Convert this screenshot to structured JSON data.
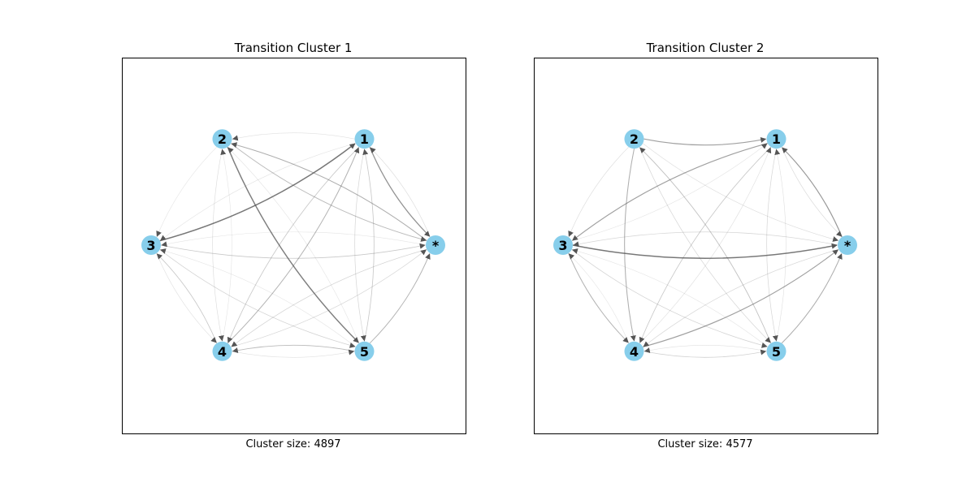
{
  "colors": {
    "node_fill": "#87ceeb",
    "edge": "#555555",
    "frame": "#000000",
    "text": "#000000"
  },
  "panels": [
    {
      "title": "Transition Cluster 1",
      "caption": "Cluster size: 4897",
      "nodes": [
        "1",
        "2",
        "3",
        "4",
        "5",
        "*"
      ],
      "edges": [
        {
          "from": "3",
          "to": "1",
          "weight": 0.9
        },
        {
          "from": "2",
          "to": "5",
          "weight": 0.85
        },
        {
          "from": "1",
          "to": "*",
          "weight": 0.7
        },
        {
          "from": "*",
          "to": "2",
          "weight": 0.5
        },
        {
          "from": "2",
          "to": "*",
          "weight": 0.4
        },
        {
          "from": "4",
          "to": "1",
          "weight": 0.45
        },
        {
          "from": "5",
          "to": "*",
          "weight": 0.45
        },
        {
          "from": "5",
          "to": "4",
          "weight": 0.4
        },
        {
          "from": "3",
          "to": "*",
          "weight": 0.3
        },
        {
          "from": "4",
          "to": "3",
          "weight": 0.3
        },
        {
          "from": "1",
          "to": "4",
          "weight": 0.3
        },
        {
          "from": "5",
          "to": "1",
          "weight": 0.3
        },
        {
          "from": "3",
          "to": "5",
          "weight": 0.22
        },
        {
          "from": "*",
          "to": "4",
          "weight": 0.22
        },
        {
          "from": "4",
          "to": "*",
          "weight": 0.2
        },
        {
          "from": "1",
          "to": "5",
          "weight": 0.2
        },
        {
          "from": "*",
          "to": "1",
          "weight": 0.15
        },
        {
          "from": "2",
          "to": "4",
          "weight": 0.15
        },
        {
          "from": "1",
          "to": "2",
          "weight": 0.12
        },
        {
          "from": "4",
          "to": "5",
          "weight": 0.12
        },
        {
          "from": "3",
          "to": "4",
          "weight": 0.12
        },
        {
          "from": "4",
          "to": "2",
          "weight": 0.1
        },
        {
          "from": "2",
          "to": "3",
          "weight": 0.1
        },
        {
          "from": "1",
          "to": "3",
          "weight": 0.1
        },
        {
          "from": "5",
          "to": "3",
          "weight": 0.1
        },
        {
          "from": "*",
          "to": "3",
          "weight": 0.1
        },
        {
          "from": "5",
          "to": "2",
          "weight": 0.1
        }
      ]
    },
    {
      "title": "Transition Cluster 2",
      "caption": "Cluster size: 4577",
      "nodes": [
        "1",
        "2",
        "3",
        "4",
        "5",
        "*"
      ],
      "edges": [
        {
          "from": "3",
          "to": "*",
          "weight": 0.9
        },
        {
          "from": "*",
          "to": "1",
          "weight": 0.65
        },
        {
          "from": "4",
          "to": "*",
          "weight": 0.6
        },
        {
          "from": "1",
          "to": "3",
          "weight": 0.6
        },
        {
          "from": "2",
          "to": "1",
          "weight": 0.6
        },
        {
          "from": "2",
          "to": "4",
          "weight": 0.5
        },
        {
          "from": "5",
          "to": "*",
          "weight": 0.5
        },
        {
          "from": "3",
          "to": "4",
          "weight": 0.45
        },
        {
          "from": "5",
          "to": "2",
          "weight": 0.35
        },
        {
          "from": "1",
          "to": "4",
          "weight": 0.3
        },
        {
          "from": "4",
          "to": "5",
          "weight": 0.25
        },
        {
          "from": "3",
          "to": "5",
          "weight": 0.22
        },
        {
          "from": "2",
          "to": "5",
          "weight": 0.2
        },
        {
          "from": "*",
          "to": "3",
          "weight": 0.2
        },
        {
          "from": "1",
          "to": "5",
          "weight": 0.2
        },
        {
          "from": "*",
          "to": "4",
          "weight": 0.2
        },
        {
          "from": "1",
          "to": "*",
          "weight": 0.18
        },
        {
          "from": "2",
          "to": "3",
          "weight": 0.15
        },
        {
          "from": "2",
          "to": "*",
          "weight": 0.15
        },
        {
          "from": "5",
          "to": "4",
          "weight": 0.12
        },
        {
          "from": "4",
          "to": "1",
          "weight": 0.12
        },
        {
          "from": "5",
          "to": "1",
          "weight": 0.12
        },
        {
          "from": "4",
          "to": "3",
          "weight": 0.1
        },
        {
          "from": "5",
          "to": "3",
          "weight": 0.1
        },
        {
          "from": "3",
          "to": "1",
          "weight": 0.1
        }
      ]
    }
  ]
}
